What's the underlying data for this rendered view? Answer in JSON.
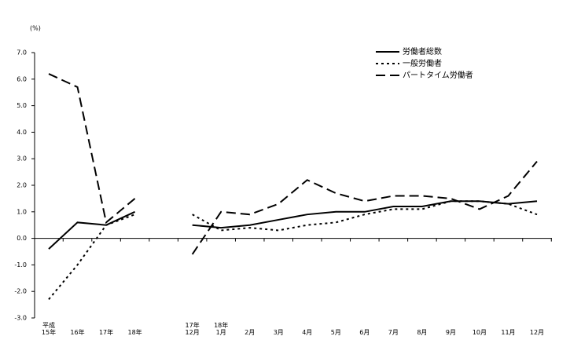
{
  "chart_data": {
    "type": "line",
    "y_label": "(%)",
    "categories": [
      "平成\n15年",
      "16年",
      "17年",
      "18年",
      null,
      "17年\n12月",
      "18年\n1月",
      "2月",
      "3月",
      "4月",
      "5月",
      "6月",
      "7月",
      "8月",
      "9月",
      "10月",
      "11月",
      "12月"
    ],
    "series": [
      {
        "name": "労働者総数",
        "color": "#000000",
        "dash": "solid",
        "values": [
          -0.4,
          0.6,
          0.5,
          1.0,
          null,
          0.5,
          0.4,
          0.5,
          0.7,
          0.9,
          1.0,
          1.0,
          1.2,
          1.2,
          1.4,
          1.4,
          1.3,
          1.4
        ]
      },
      {
        "name": "一般労働者",
        "color": "#000000",
        "dash": "dotted",
        "values": [
          -2.3,
          -1.0,
          0.5,
          0.9,
          null,
          0.9,
          0.3,
          0.4,
          0.3,
          0.5,
          0.6,
          0.9,
          1.1,
          1.1,
          1.4,
          1.4,
          1.3,
          0.9
        ]
      },
      {
        "name": "パートタイム労働者",
        "color": "#000000",
        "dash": "dashed",
        "values": [
          6.2,
          5.7,
          0.6,
          1.5,
          null,
          -0.6,
          1.0,
          0.9,
          1.3,
          2.2,
          1.7,
          1.4,
          1.6,
          1.6,
          1.5,
          1.1,
          1.6,
          2.9
        ]
      }
    ],
    "ylim": [
      -3.0,
      7.0
    ],
    "yticks": [
      {
        "value": 7,
        "label": "7.0"
      },
      {
        "value": 6,
        "label": "6.0"
      },
      {
        "value": 5,
        "label": "5.0"
      },
      {
        "value": 4,
        "label": "4.0"
      },
      {
        "value": 3,
        "label": "3.0"
      },
      {
        "value": 2,
        "label": "2.0"
      },
      {
        "value": 1,
        "label": "1.0"
      },
      {
        "value": 0,
        "label": "0.0"
      },
      {
        "value": -1,
        "label": "-1.0"
      },
      {
        "value": -2,
        "label": "-2.0"
      },
      {
        "value": -3,
        "label": "-3.0"
      }
    ],
    "legend": "upper right"
  }
}
